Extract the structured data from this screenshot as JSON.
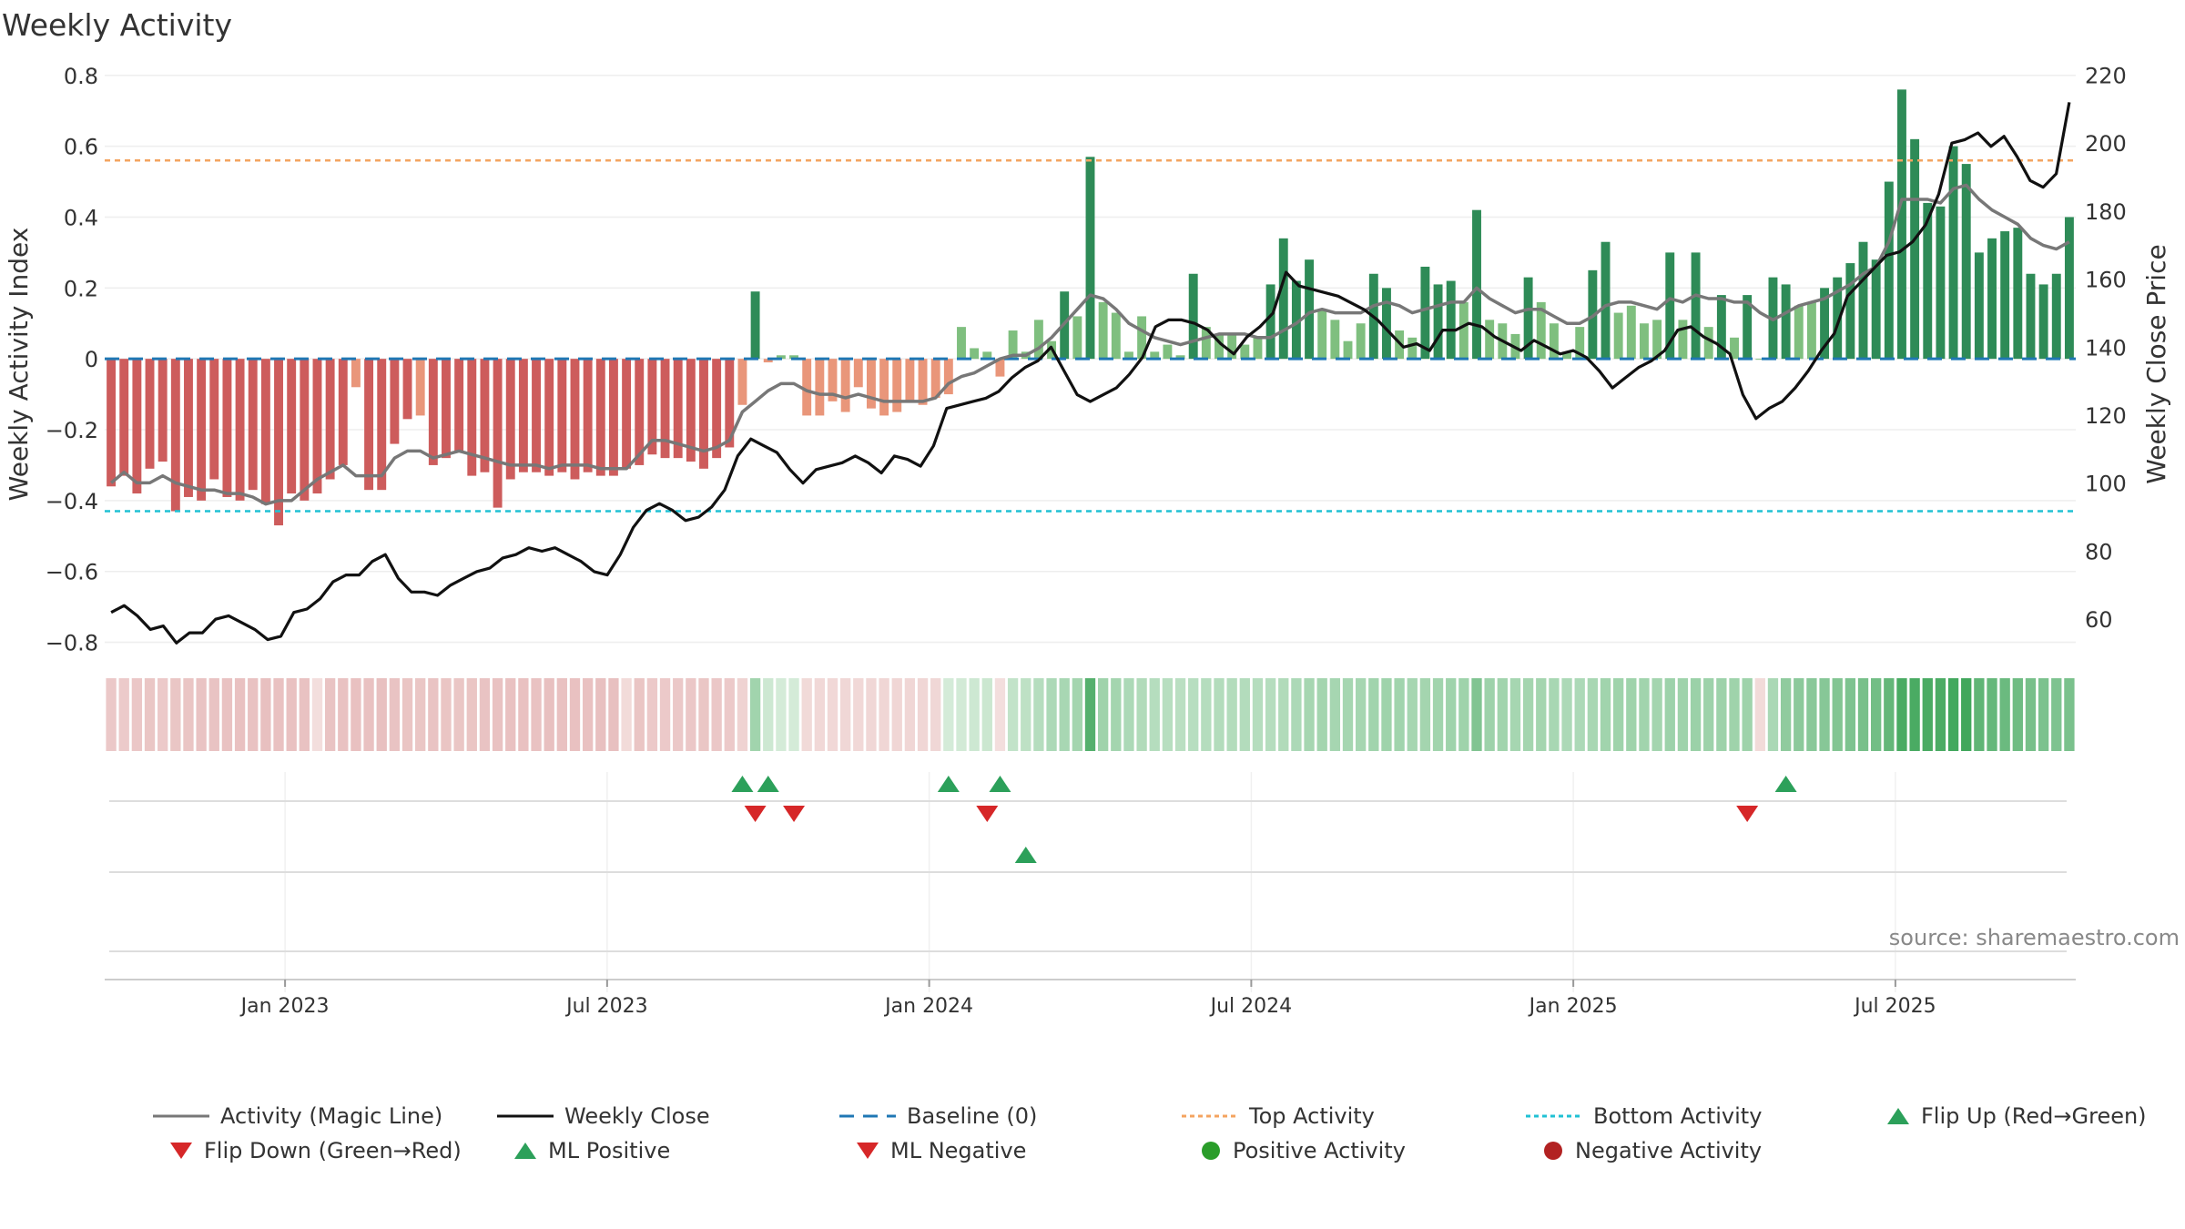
{
  "header": {
    "title": "Weekly Activity"
  },
  "source_text": "source: sharemaestro.com",
  "colors": {
    "pos_dark": "#2e8b57",
    "pos_light": "#7fbf7f",
    "neg_dark": "#cd5c5c",
    "neg_light": "#e9967a",
    "magic_line": "#777777",
    "close_line": "#111111",
    "top_line": "#f4a460",
    "bottom_line": "#20c1d4",
    "baseline": "#1f77b4",
    "flip_up": "#2ca05a",
    "flip_down": "#d62728"
  },
  "chart_data": {
    "type": "bar+line",
    "title": "Weekly Activity",
    "ylabel_left": "Weekly Activity Index",
    "ylabel_right": "Weekly Close Price",
    "ylim_left": [
      -0.85,
      0.82
    ],
    "ylim_right": [
      48,
      222
    ],
    "yticks_left": [
      0.8,
      0.6,
      0.4,
      0.2,
      0,
      -0.2,
      -0.4,
      -0.6,
      -0.8
    ],
    "yticks_left_labels": [
      "0.8",
      "0.6",
      "0.4",
      "0.2",
      "0",
      "−0.2",
      "−0.4",
      "−0.6",
      "−0.8"
    ],
    "yticks_right": [
      220,
      200,
      180,
      160,
      140,
      120,
      100,
      80,
      60
    ],
    "yticks_right_labels": [
      "220",
      "200",
      "180",
      "160",
      "140",
      "120",
      "100",
      "80",
      "60"
    ],
    "x_range_weeks": [
      0,
      150
    ],
    "x_ticks": [
      {
        "week": 14,
        "label": "Jan 2023"
      },
      {
        "week": 39,
        "label": "Jul 2023"
      },
      {
        "week": 64,
        "label": "Jan 2024"
      },
      {
        "week": 89,
        "label": "Jul 2024"
      },
      {
        "week": 114,
        "label": "Jan 2025"
      },
      {
        "week": 139,
        "label": "Jul 2025"
      }
    ],
    "top_activity": 0.56,
    "bottom_activity": -0.43,
    "activity": [
      -0.36,
      -0.33,
      -0.38,
      -0.31,
      -0.29,
      -0.43,
      -0.39,
      -0.4,
      -0.34,
      -0.39,
      -0.4,
      -0.37,
      -0.41,
      -0.47,
      -0.38,
      -0.4,
      -0.38,
      -0.34,
      -0.3,
      -0.08,
      -0.37,
      -0.37,
      -0.24,
      -0.17,
      -0.16,
      -0.3,
      -0.28,
      -0.26,
      -0.33,
      -0.32,
      -0.42,
      -0.34,
      -0.32,
      -0.32,
      -0.33,
      -0.32,
      -0.34,
      -0.32,
      -0.33,
      -0.33,
      -0.31,
      -0.3,
      -0.27,
      -0.28,
      -0.28,
      -0.29,
      -0.31,
      -0.28,
      -0.25,
      -0.13,
      0.19,
      -0.01,
      0.01,
      0.01,
      -0.16,
      -0.16,
      -0.12,
      -0.15,
      -0.08,
      -0.14,
      -0.16,
      -0.15,
      -0.12,
      -0.13,
      -0.11,
      -0.1,
      0.09,
      0.03,
      0.02,
      -0.05,
      0.08,
      0.02,
      0.11,
      0.05,
      0.19,
      0.12,
      0.57,
      0.16,
      0.13,
      0.02,
      0.12,
      0.02,
      0.04,
      0.01,
      0.24,
      0.09,
      0.07,
      0.07,
      0.04,
      0.06,
      0.21,
      0.34,
      0.22,
      0.28,
      0.14,
      0.11,
      0.05,
      0.1,
      0.24,
      0.2,
      0.08,
      0.06,
      0.26,
      0.21,
      0.22,
      0.16,
      0.42,
      0.11,
      0.1,
      0.07,
      0.23,
      0.16,
      0.1,
      0.02,
      0.09,
      0.25,
      0.33,
      0.13,
      0.15,
      0.1,
      0.11,
      0.3,
      0.11,
      0.3,
      0.09,
      0.18,
      0.06,
      0.18,
      0.0,
      0.23,
      0.21,
      0.15,
      0.16,
      0.2,
      0.23,
      0.27,
      0.33,
      0.28,
      0.5,
      0.76,
      0.62,
      0.44,
      0.43,
      0.6,
      0.55,
      0.3,
      0.34,
      0.36,
      0.37,
      0.24,
      0.21,
      0.24,
      0.4
    ],
    "magic_line": [
      -0.35,
      -0.32,
      -0.35,
      -0.35,
      -0.33,
      -0.35,
      -0.36,
      -0.37,
      -0.37,
      -0.38,
      -0.38,
      -0.39,
      -0.41,
      -0.4,
      -0.4,
      -0.37,
      -0.34,
      -0.32,
      -0.3,
      -0.33,
      -0.33,
      -0.33,
      -0.28,
      -0.26,
      -0.26,
      -0.28,
      -0.27,
      -0.26,
      -0.27,
      -0.28,
      -0.29,
      -0.3,
      -0.3,
      -0.3,
      -0.31,
      -0.3,
      -0.3,
      -0.3,
      -0.31,
      -0.31,
      -0.31,
      -0.27,
      -0.23,
      -0.23,
      -0.24,
      -0.25,
      -0.26,
      -0.25,
      -0.23,
      -0.15,
      -0.12,
      -0.09,
      -0.07,
      -0.07,
      -0.09,
      -0.1,
      -0.1,
      -0.11,
      -0.1,
      -0.11,
      -0.12,
      -0.12,
      -0.12,
      -0.12,
      -0.11,
      -0.07,
      -0.05,
      -0.04,
      -0.02,
      0.0,
      0.01,
      0.01,
      0.03,
      0.06,
      0.1,
      0.14,
      0.18,
      0.17,
      0.14,
      0.1,
      0.08,
      0.06,
      0.05,
      0.04,
      0.05,
      0.06,
      0.07,
      0.07,
      0.07,
      0.06,
      0.06,
      0.08,
      0.1,
      0.13,
      0.14,
      0.13,
      0.13,
      0.13,
      0.15,
      0.16,
      0.15,
      0.13,
      0.14,
      0.15,
      0.16,
      0.16,
      0.2,
      0.17,
      0.15,
      0.13,
      0.14,
      0.14,
      0.12,
      0.1,
      0.1,
      0.12,
      0.15,
      0.16,
      0.16,
      0.15,
      0.14,
      0.17,
      0.16,
      0.18,
      0.17,
      0.17,
      0.16,
      0.16,
      0.13,
      0.11,
      0.13,
      0.15,
      0.16,
      0.17,
      0.19,
      0.21,
      0.24,
      0.26,
      0.33,
      0.45,
      0.45,
      0.45,
      0.44,
      0.48,
      0.49,
      0.45,
      0.42,
      0.4,
      0.38,
      0.34,
      0.32,
      0.31,
      0.33
    ],
    "weekly_close": [
      62,
      64,
      61,
      57,
      58,
      53,
      56,
      56,
      60,
      61,
      59,
      57,
      54,
      55,
      62,
      63,
      66,
      71,
      73,
      73,
      77,
      79,
      72,
      68,
      68,
      67,
      70,
      72,
      74,
      75,
      78,
      79,
      81,
      80,
      81,
      79,
      77,
      74,
      73,
      79,
      87,
      92,
      94,
      92,
      89,
      90,
      93,
      98,
      108,
      113,
      111,
      109,
      104,
      100,
      104,
      105,
      106,
      108,
      106,
      103,
      108,
      107,
      105,
      111,
      122,
      123,
      124,
      125,
      127,
      131,
      134,
      136,
      140,
      133,
      126,
      124,
      126,
      128,
      132,
      137,
      146,
      148,
      148,
      147,
      145,
      141,
      138,
      143,
      146,
      150,
      162,
      158,
      157,
      156,
      155,
      153,
      151,
      148,
      144,
      140,
      141,
      139,
      145,
      145,
      147,
      146,
      143,
      141,
      139,
      142,
      140,
      138,
      139,
      137,
      133,
      128,
      131,
      134,
      136,
      139,
      145,
      146,
      143,
      141,
      138,
      126,
      119,
      122,
      124,
      128,
      133,
      139,
      144,
      155,
      159,
      163,
      167,
      168,
      171,
      176,
      185,
      200,
      201,
      203,
      199,
      202,
      196,
      189,
      187,
      191,
      212
    ],
    "band_levels": [
      -0.24,
      -0.22,
      -0.25,
      -0.26,
      -0.23,
      -0.26,
      -0.27,
      -0.28,
      -0.28,
      -0.29,
      -0.3,
      -0.29,
      -0.31,
      -0.3,
      -0.3,
      -0.29,
      -0.05,
      -0.28,
      -0.29,
      -0.3,
      -0.3,
      -0.31,
      -0.28,
      -0.27,
      -0.26,
      -0.28,
      -0.27,
      -0.26,
      -0.27,
      -0.28,
      -0.29,
      -0.3,
      -0.3,
      -0.29,
      -0.31,
      -0.3,
      -0.3,
      -0.3,
      -0.31,
      -0.31,
      -0.08,
      -0.27,
      -0.23,
      -0.23,
      -0.24,
      -0.25,
      -0.26,
      -0.25,
      -0.23,
      -0.15,
      0.35,
      0.15,
      0.12,
      0.12,
      -0.09,
      -0.1,
      -0.1,
      -0.11,
      -0.1,
      -0.11,
      -0.12,
      -0.12,
      -0.12,
      -0.12,
      -0.11,
      0.12,
      0.13,
      0.15,
      0.16,
      -0.05,
      0.2,
      0.22,
      0.26,
      0.3,
      0.32,
      0.34,
      0.7,
      0.36,
      0.34,
      0.3,
      0.28,
      0.26,
      0.25,
      0.24,
      0.25,
      0.26,
      0.27,
      0.27,
      0.27,
      0.26,
      0.26,
      0.28,
      0.3,
      0.33,
      0.34,
      0.33,
      0.33,
      0.33,
      0.35,
      0.36,
      0.35,
      0.33,
      0.34,
      0.35,
      0.36,
      0.36,
      0.5,
      0.37,
      0.35,
      0.33,
      0.34,
      0.34,
      0.32,
      0.3,
      0.3,
      0.32,
      0.35,
      0.36,
      0.36,
      0.35,
      0.34,
      0.37,
      0.36,
      0.38,
      0.37,
      0.37,
      0.36,
      0.36,
      -0.08,
      0.31,
      0.43,
      0.45,
      0.46,
      0.47,
      0.49,
      0.51,
      0.54,
      0.56,
      0.63,
      0.75,
      0.75,
      0.75,
      0.74,
      0.78,
      0.79,
      0.65,
      0.62,
      0.6,
      0.58,
      0.54,
      0.52,
      0.51,
      0.53
    ],
    "flip_up_weeks": [
      49,
      51,
      65,
      69,
      130
    ],
    "flip_down_weeks": [
      50,
      53,
      68,
      127
    ],
    "ml_positive_weeks": [
      71
    ],
    "legend": [
      "Activity (Magic Line)",
      "Weekly Close",
      "Baseline (0)",
      "Top Activity",
      "Bottom Activity",
      "Flip Up (Red→Green)",
      "Flip Down (Green→Red)",
      "ML Positive",
      "ML Negative",
      "Positive Activity",
      "Negative Activity"
    ]
  }
}
